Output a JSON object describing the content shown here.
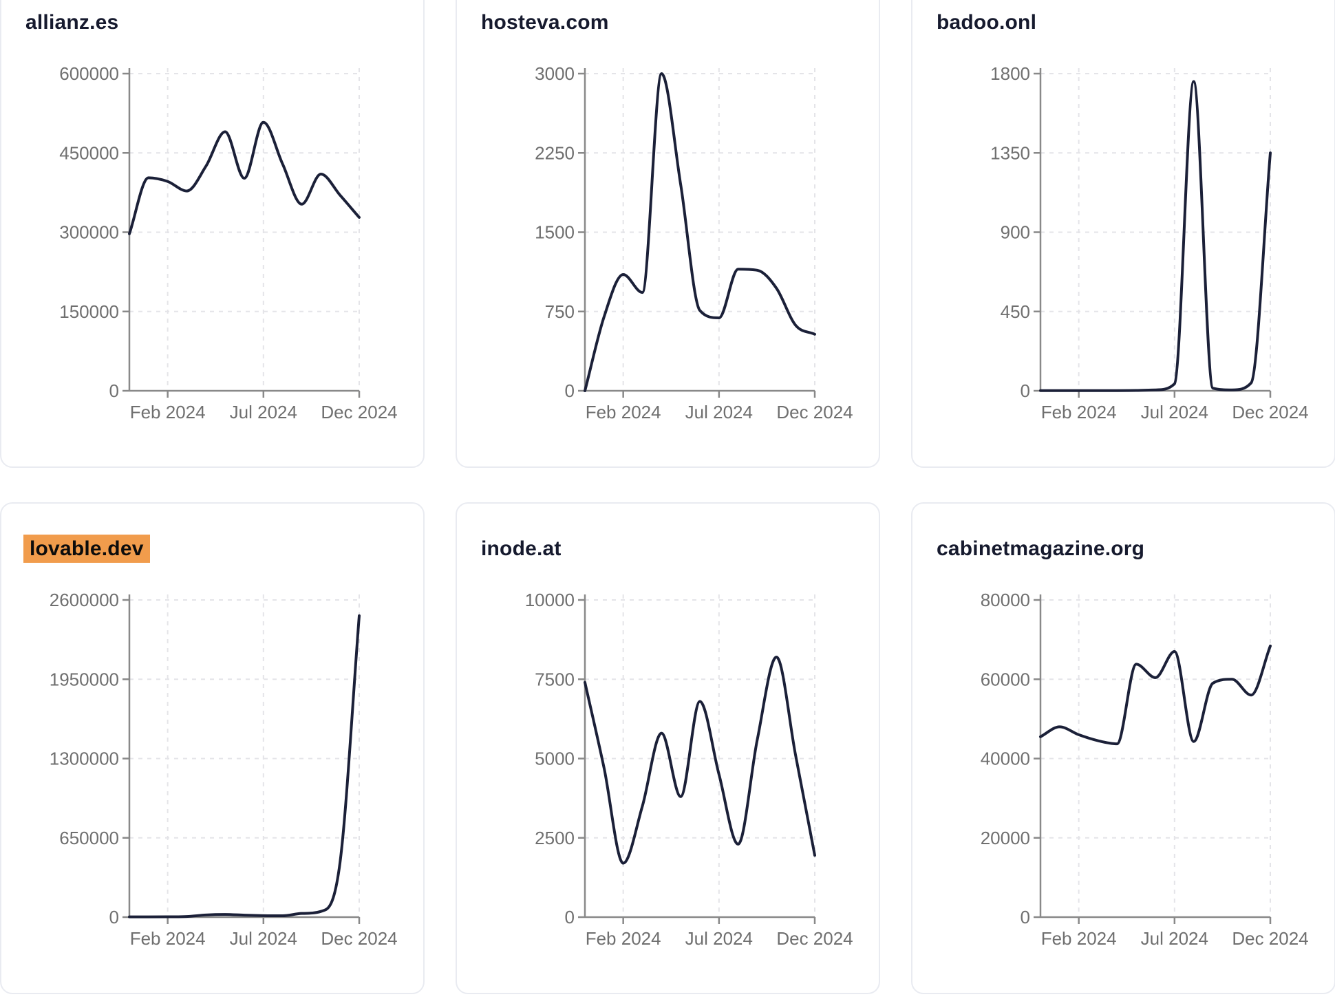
{
  "page": {
    "background": "#ffffff",
    "layout": "3x2 grid of website-traffic sparkline cards"
  },
  "colors": {
    "card_bg": "#ffffff",
    "card_border": "#e9ebf1",
    "title": "#161a2e",
    "line": "#1b2038",
    "axis": "#898989",
    "tick_label": "#6f6f6f",
    "grid": "#e4e4e8",
    "highlight": "#f19c4c"
  },
  "x_tick_labels": [
    "Feb 2024",
    "Jul 2024",
    "Dec 2024"
  ],
  "chart_data": [
    {
      "type": "line",
      "title": "allianz.es",
      "highlighted": false,
      "x": [
        "Dec 2023",
        "Jan 2024",
        "Feb 2024",
        "Mar 2024",
        "Apr 2024",
        "May 2024",
        "Jun 2024",
        "Jul 2024",
        "Aug 2024",
        "Sep 2024",
        "Oct 2024",
        "Nov 2024",
        "Dec 2024"
      ],
      "values": [
        297000,
        403000,
        396000,
        378000,
        425000,
        490000,
        402000,
        508000,
        429000,
        353000,
        410000,
        370000,
        328000
      ],
      "y_ticks": [
        0,
        150000,
        300000,
        450000,
        600000
      ],
      "ylim": [
        0,
        600000
      ],
      "x_tick_labels": [
        "Feb 2024",
        "Jul 2024",
        "Dec 2024"
      ],
      "grid": true,
      "legend": null
    },
    {
      "type": "line",
      "title": "hosteva.com",
      "highlighted": false,
      "x": [
        "Dec 2023",
        "Jan 2024",
        "Feb 2024",
        "Mar 2024",
        "Apr 2024",
        "May 2024",
        "Jun 2024",
        "Jul 2024",
        "Aug 2024",
        "Sep 2024",
        "Oct 2024",
        "Nov 2024",
        "Dec 2024"
      ],
      "values": [
        0,
        700,
        1100,
        930,
        3000,
        1950,
        760,
        690,
        1150,
        1140,
        970,
        620,
        535
      ],
      "y_ticks": [
        0,
        750,
        1500,
        2250,
        3000
      ],
      "ylim": [
        0,
        3000
      ],
      "x_tick_labels": [
        "Feb 2024",
        "Jul 2024",
        "Dec 2024"
      ],
      "grid": true,
      "legend": null
    },
    {
      "type": "line",
      "title": "badoo.onl",
      "highlighted": false,
      "x": [
        "Dec 2023",
        "Jan 2024",
        "Feb 2024",
        "Mar 2024",
        "Apr 2024",
        "May 2024",
        "Jun 2024",
        "Jul 2024",
        "Aug 2024",
        "Sep 2024",
        "Oct 2024",
        "Nov 2024",
        "Dec 2024"
      ],
      "values": [
        1,
        1,
        1,
        1,
        1,
        2,
        5,
        40,
        1755,
        15,
        5,
        45,
        1350
      ],
      "y_ticks": [
        0,
        450,
        900,
        1350,
        1800
      ],
      "ylim": [
        0,
        1800
      ],
      "x_tick_labels": [
        "Feb 2024",
        "Jul 2024",
        "Dec 2024"
      ],
      "grid": true,
      "legend": null
    },
    {
      "type": "line",
      "title": "lovable.dev",
      "highlighted": true,
      "x": [
        "Dec 2023",
        "Jan 2024",
        "Feb 2024",
        "Mar 2024",
        "Apr 2024",
        "May 2024",
        "Jun 2024",
        "Jul 2024",
        "Aug 2024",
        "Sep 2024",
        "Oct 2024",
        "Nov 2024",
        "Dec 2024"
      ],
      "values": [
        2000,
        2000,
        2500,
        5000,
        18000,
        22000,
        16000,
        12000,
        11000,
        30000,
        47000,
        450000,
        2470000
      ],
      "y_ticks": [
        0,
        650000,
        1300000,
        1950000,
        2600000
      ],
      "ylim": [
        0,
        2600000
      ],
      "x_tick_labels": [
        "Feb 2024",
        "Jul 2024",
        "Dec 2024"
      ],
      "grid": true,
      "legend": null
    },
    {
      "type": "line",
      "title": "inode.at",
      "highlighted": false,
      "x": [
        "Dec 2023",
        "Jan 2024",
        "Feb 2024",
        "Mar 2024",
        "Apr 2024",
        "May 2024",
        "Jun 2024",
        "Jul 2024",
        "Aug 2024",
        "Sep 2024",
        "Oct 2024",
        "Nov 2024",
        "Dec 2024"
      ],
      "values": [
        7400,
        4700,
        1700,
        3500,
        5800,
        3800,
        6800,
        4500,
        2300,
        5600,
        8200,
        5100,
        1950
      ],
      "y_ticks": [
        0,
        2500,
        5000,
        7500,
        10000
      ],
      "ylim": [
        0,
        10000
      ],
      "x_tick_labels": [
        "Feb 2024",
        "Jul 2024",
        "Dec 2024"
      ],
      "grid": true,
      "legend": null
    },
    {
      "type": "line",
      "title": "cabinetmagazine.org",
      "highlighted": false,
      "x": [
        "Dec 2023",
        "Jan 2024",
        "Feb 2024",
        "Mar 2024",
        "Apr 2024",
        "May 2024",
        "Jun 2024",
        "Jul 2024",
        "Aug 2024",
        "Sep 2024",
        "Oct 2024",
        "Nov 2024",
        "Dec 2024"
      ],
      "values": [
        45500,
        48000,
        46000,
        44500,
        43700,
        63800,
        60400,
        67000,
        44300,
        59000,
        60000,
        56000,
        68400
      ],
      "y_ticks": [
        0,
        20000,
        40000,
        60000,
        80000
      ],
      "ylim": [
        0,
        80000
      ],
      "x_tick_labels": [
        "Feb 2024",
        "Jul 2024",
        "Dec 2024"
      ],
      "grid": true,
      "legend": null
    }
  ]
}
